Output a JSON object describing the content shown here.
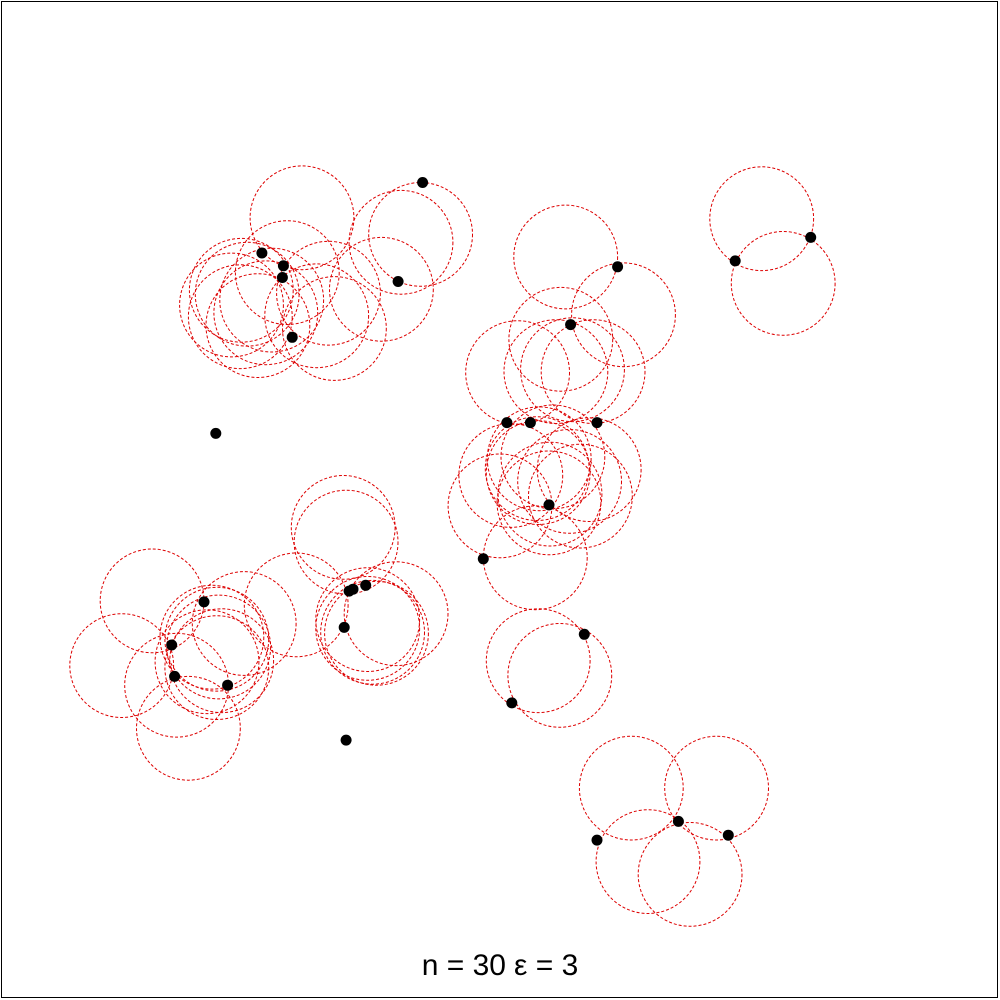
{
  "caption": {
    "n_label": "n = 30",
    "eps_label": "ε = 3"
  },
  "colors": {
    "points": "#000000",
    "circles": "#dd0000",
    "frame": "#000000",
    "background": "#ffffff"
  },
  "chart_data": {
    "type": "scatter",
    "title": "",
    "xlabel": "",
    "ylabel": "",
    "axes_visible": false,
    "grid": false,
    "xlim": [
      0,
      100
    ],
    "ylim": [
      0,
      100
    ],
    "n": 30,
    "epsilon": 3,
    "points": [
      {
        "x": 42.1,
        "y": 82.4
      },
      {
        "x": 25.7,
        "y": 75.2
      },
      {
        "x": 27.9,
        "y": 73.9
      },
      {
        "x": 27.8,
        "y": 72.7
      },
      {
        "x": 39.6,
        "y": 72.3
      },
      {
        "x": 28.8,
        "y": 66.6
      },
      {
        "x": 21.0,
        "y": 56.8
      },
      {
        "x": 62.0,
        "y": 73.8
      },
      {
        "x": 57.2,
        "y": 67.9
      },
      {
        "x": 74.0,
        "y": 74.4
      },
      {
        "x": 81.7,
        "y": 76.8
      },
      {
        "x": 50.7,
        "y": 57.9
      },
      {
        "x": 53.1,
        "y": 57.9
      },
      {
        "x": 59.9,
        "y": 57.9
      },
      {
        "x": 55.0,
        "y": 49.5
      },
      {
        "x": 48.3,
        "y": 44.0
      },
      {
        "x": 58.6,
        "y": 36.3
      },
      {
        "x": 51.2,
        "y": 29.3
      },
      {
        "x": 19.8,
        "y": 39.6
      },
      {
        "x": 16.5,
        "y": 35.2
      },
      {
        "x": 16.8,
        "y": 32.0
      },
      {
        "x": 22.2,
        "y": 31.1
      },
      {
        "x": 34.6,
        "y": 40.7
      },
      {
        "x": 35.0,
        "y": 40.9
      },
      {
        "x": 36.3,
        "y": 41.3
      },
      {
        "x": 34.1,
        "y": 37.0
      },
      {
        "x": 34.3,
        "y": 25.5
      },
      {
        "x": 68.2,
        "y": 17.2
      },
      {
        "x": 73.3,
        "y": 15.8
      },
      {
        "x": 59.9,
        "y": 15.3
      }
    ],
    "circles": [
      [
        24.2,
        71.0
      ],
      [
        28.3,
        73.2
      ],
      [
        29.8,
        78.8
      ],
      [
        32.5,
        71.1
      ],
      [
        26.1,
        69.1
      ],
      [
        33.1,
        67.5
      ],
      [
        22.6,
        69.9
      ],
      [
        23.5,
        68.7
      ],
      [
        37.9,
        71.5
      ],
      [
        41.9,
        77.1
      ],
      [
        39.9,
        76.3
      ],
      [
        23.6,
        71.4
      ],
      [
        31.3,
        68.8
      ],
      [
        26.7,
        70.4
      ],
      [
        25.3,
        67.8
      ],
      [
        56.7,
        74.8
      ],
      [
        62.6,
        68.9
      ],
      [
        51.8,
        63.0
      ],
      [
        55.7,
        63.1
      ],
      [
        59.5,
        63.1
      ],
      [
        57.4,
        63.3
      ],
      [
        56.2,
        66.4
      ],
      [
        55.1,
        50.6
      ],
      [
        59.1,
        53.1
      ],
      [
        55.4,
        54.4
      ],
      [
        53.8,
        53.2
      ],
      [
        54.0,
        54.2
      ],
      [
        57.1,
        51.9
      ],
      [
        51.1,
        52.5
      ],
      [
        53.9,
        52.8
      ],
      [
        53.6,
        44.1
      ],
      [
        50.0,
        49.4
      ],
      [
        55.0,
        49.7
      ],
      [
        58.2,
        50.4
      ],
      [
        53.9,
        33.6
      ],
      [
        56.1,
        32.1
      ],
      [
        76.7,
        78.7
      ],
      [
        78.9,
        72.1
      ],
      [
        14.5,
        39.7
      ],
      [
        23.9,
        37.4
      ],
      [
        21.3,
        35.0
      ],
      [
        21.1,
        35.8
      ],
      [
        21.1,
        32.9
      ],
      [
        11.4,
        33.1
      ],
      [
        17.0,
        31.1
      ],
      [
        18.2,
        26.7
      ],
      [
        20.6,
        36.0
      ],
      [
        21.6,
        33.6
      ],
      [
        20.1,
        33.5
      ],
      [
        29.2,
        39.3
      ],
      [
        34.3,
        45.7
      ],
      [
        34.0,
        47.2
      ],
      [
        39.4,
        38.4
      ],
      [
        37.4,
        36.4
      ],
      [
        37.0,
        36.5
      ],
      [
        36.5,
        36.9
      ],
      [
        36.5,
        37.8
      ],
      [
        63.4,
        20.6
      ],
      [
        72.1,
        20.6
      ],
      [
        65.1,
        13.1
      ],
      [
        69.4,
        11.8
      ]
    ]
  }
}
